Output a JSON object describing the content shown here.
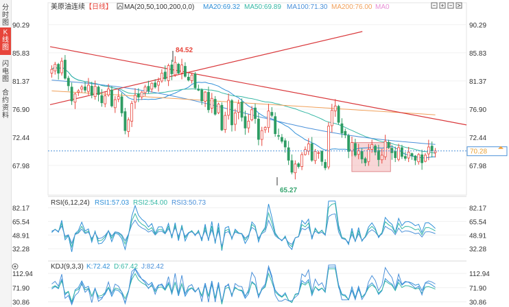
{
  "left_tabs": [
    {
      "label": "分时图",
      "active": false
    },
    {
      "label": "K线图",
      "active": true
    },
    {
      "label": "闪电图",
      "active": false
    },
    {
      "label": "合约资料",
      "active": false
    }
  ],
  "header": {
    "title": "美原油连续",
    "period": "【日线】",
    "ma_label": "MA(20,50,100,200,0,0)",
    "ma20": "MA20:69.32",
    "ma50": "MA50:69.89",
    "ma100": "MA100:71.30",
    "ma200": "MA200:76.00",
    "ma0": "MA0",
    "colors": {
      "title": "#333333",
      "period": "#e7443a",
      "ma20": "#2f8fd8",
      "ma50": "#35b7a4",
      "ma100": "#4a90d9",
      "ma200": "#f0a05a",
      "ma0": "#e78fd5"
    }
  },
  "rsi_header": {
    "label": "RSI(6,12,24)",
    "rsi1": "RSI1:57.03",
    "rsi2": "RSI2:54.00",
    "rsi3": "RSI3:50.73"
  },
  "kdj_header": {
    "label": "KDJ(9,3,3)",
    "k": "K:72.42",
    "d": "D:67.42",
    "j": "J:82.42"
  },
  "annotations": {
    "high": "84.52",
    "low": "65.27",
    "current": "70.28"
  },
  "chart_data": [
    {
      "type": "candlestick",
      "panel": "main",
      "y_ticks": [
        90.29,
        85.83,
        81.37,
        76.9,
        72.44,
        67.98
      ],
      "y_tick_labels": [
        "90.29",
        "85.83",
        "81.37",
        "76.90",
        "72.44",
        "67.98"
      ],
      "ylim": [
        63.5,
        91.8
      ],
      "current_price": 70.28,
      "high_marker": 84.52,
      "low_marker": 65.27,
      "ma_series": [
        {
          "name": "MA20",
          "last": 69.32,
          "color": "#2f8fd8"
        },
        {
          "name": "MA50",
          "last": 69.89,
          "color": "#35b7a4"
        },
        {
          "name": "MA100",
          "last": 71.3,
          "color": "#4a90d9"
        },
        {
          "name": "MA200",
          "last": 76.0,
          "color": "#f0a05a"
        }
      ],
      "trendlines": [
        {
          "from": [
            0.0,
            86.8
          ],
          "to": [
            1.0,
            74.4
          ],
          "color": "#d9373a"
        },
        {
          "from": [
            0.0,
            77.6
          ],
          "to": [
            0.75,
            89.2
          ],
          "color": "#d9373a"
        }
      ],
      "box": {
        "x_range": [
          0.78,
          0.88
        ],
        "y_range": [
          67.0,
          71.6
        ]
      },
      "closes": [
        83.2,
        84.0,
        82.6,
        84.5,
        81.8,
        80.6,
        78.2,
        79.3,
        79.8,
        80.4,
        79.9,
        80.7,
        79.1,
        80.5,
        79.2,
        77.9,
        79.0,
        80.1,
        77.4,
        78.4,
        78.9,
        76.3,
        73.5,
        75.2,
        77.8,
        79.1,
        78.8,
        79.6,
        80.4,
        79.8,
        81.0,
        80.4,
        81.3,
        82.6,
        81.7,
        83.8,
        82.5,
        84.3,
        82.6,
        83.9,
        82.1,
        81.5,
        82.3,
        80.3,
        80.0,
        78.2,
        79.6,
        76.8,
        78.6,
        76.1,
        77.7,
        73.6,
        75.9,
        78.3,
        74.4,
        76.3,
        77.8,
        75.6,
        73.9,
        75.0,
        76.8,
        75.4,
        72.1,
        73.5,
        74.0,
        76.6,
        75.9,
        73.0,
        72.7,
        71.8,
        70.9,
        68.8,
        66.9,
        68.2,
        67.8,
        69.7,
        70.5,
        71.4,
        68.8,
        70.2,
        70.0,
        68.6,
        67.6,
        74.2,
        76.7,
        77.4,
        74.8,
        73.1,
        72.8,
        70.2,
        71.6,
        69.6,
        70.3,
        69.0,
        68.4,
        70.5,
        71.3,
        70.1,
        68.9,
        69.6,
        71.8,
        70.8,
        70.0,
        69.2,
        70.8,
        69.4,
        69.1,
        70.1,
        69.5,
        68.8,
        69.7,
        68.4,
        69.6,
        70.9,
        70.3,
        70.28
      ]
    },
    {
      "type": "line",
      "panel": "RSI",
      "y_ticks": [
        82.17,
        65.54,
        48.91,
        32.28
      ],
      "y_tick_labels": [
        "82.17",
        "65.54",
        "48.91",
        "32.28"
      ],
      "ylim": [
        24,
        86
      ],
      "series": [
        {
          "name": "RSI1",
          "last": 57.03,
          "color": "#2f8fd8"
        },
        {
          "name": "RSI2",
          "last": 54.0,
          "color": "#35b7a4"
        },
        {
          "name": "RSI3",
          "last": 50.73,
          "color": "#4a90d9"
        }
      ]
    },
    {
      "type": "line",
      "panel": "KDJ",
      "y_ticks": [
        112.94,
        71.9,
        30.86
      ],
      "y_tick_labels": [
        "112.94",
        "71.90",
        "30.86"
      ],
      "ylim": [
        20,
        125
      ],
      "series": [
        {
          "name": "K",
          "last": 72.42,
          "color": "#2f8fd8"
        },
        {
          "name": "D",
          "last": 67.42,
          "color": "#35b7a4"
        },
        {
          "name": "J",
          "last": 82.42,
          "color": "#4a90d9"
        }
      ]
    }
  ]
}
